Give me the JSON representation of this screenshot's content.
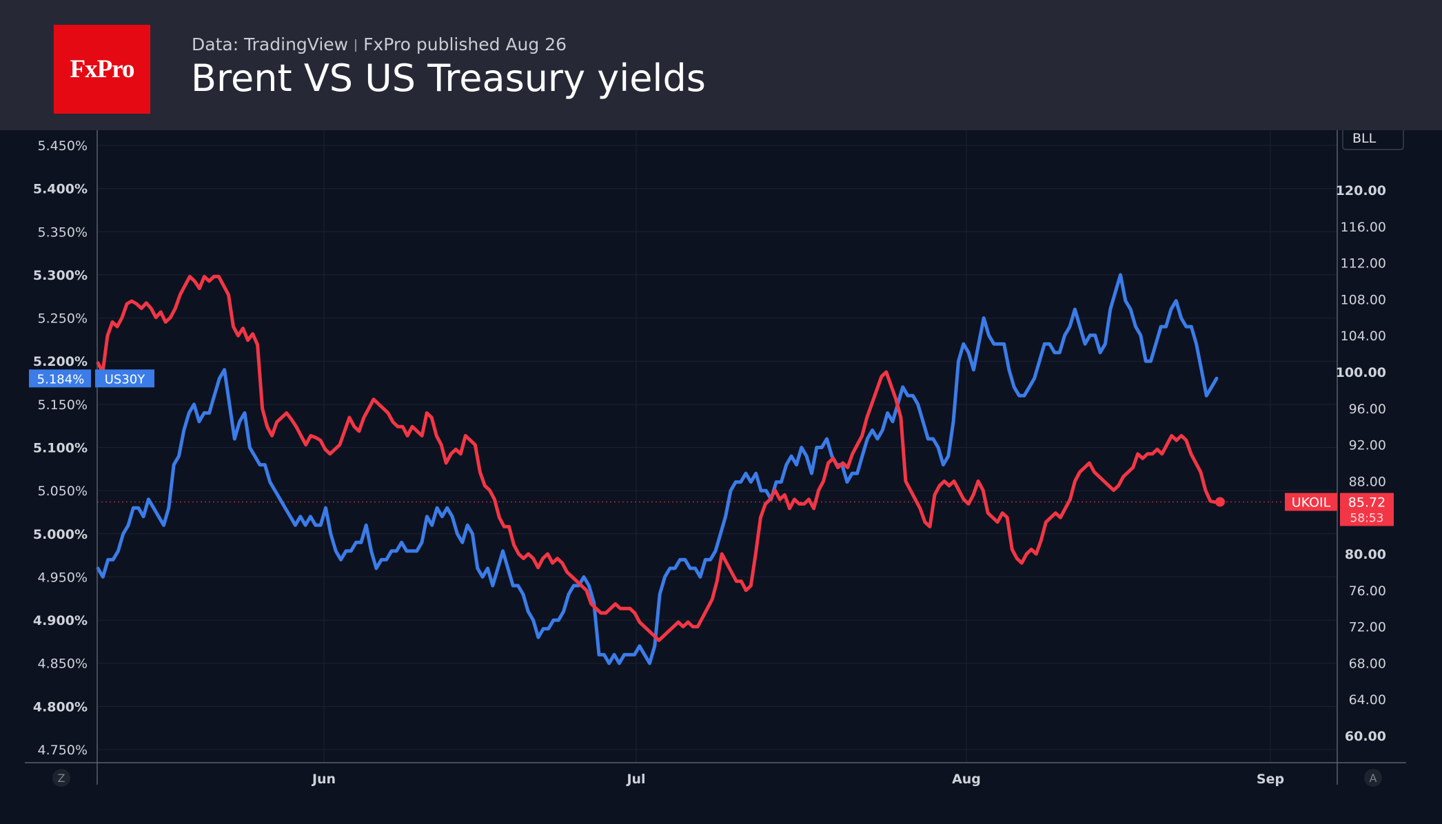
{
  "header": {
    "logo_text": "FxPro",
    "source_label": "Data: TradingView",
    "published": "FxPro published Aug 26",
    "title": "Brent VS US Treasury yields"
  },
  "chart_data": {
    "type": "line",
    "left_axis": {
      "ticks": [
        "5.450%",
        "5.400%",
        "5.350%",
        "5.300%",
        "5.250%",
        "5.200%",
        "5.150%",
        "5.100%",
        "5.050%",
        "5.000%",
        "4.950%",
        "4.900%",
        "4.850%",
        "4.800%",
        "4.750%"
      ],
      "tick_values": [
        5.45,
        5.4,
        5.35,
        5.3,
        5.25,
        5.2,
        5.15,
        5.1,
        5.05,
        5.0,
        4.95,
        4.9,
        4.85,
        4.8,
        4.75
      ],
      "range": [
        4.74,
        5.465
      ]
    },
    "right_axis": {
      "unit_label": "BLL",
      "ticks": [
        "120.00",
        "116.00",
        "112.00",
        "108.00",
        "104.00",
        "100.00",
        "96.00",
        "92.00",
        "88.00",
        "80.00",
        "76.00",
        "72.00",
        "68.00",
        "64.00",
        "60.00"
      ],
      "tick_values": [
        120,
        116,
        112,
        108,
        104,
        100,
        96,
        92,
        88,
        80,
        76,
        72,
        68,
        64,
        60
      ]
    },
    "x_axis": {
      "ticks": [
        "Jun",
        "Jul",
        "Aug",
        "Sep"
      ],
      "tick_positions": [
        0.184,
        0.439,
        0.707,
        0.953
      ],
      "left_button": "Z",
      "right_button": "A"
    },
    "series": [
      {
        "name": "US30Y",
        "axis": "left",
        "color": "#3b7ce8",
        "last_label": "5.184%",
        "values": [
          4.96,
          4.95,
          4.97,
          4.97,
          4.98,
          5.0,
          5.01,
          5.03,
          5.03,
          5.02,
          5.04,
          5.03,
          5.02,
          5.01,
          5.03,
          5.08,
          5.09,
          5.12,
          5.14,
          5.15,
          5.13,
          5.14,
          5.14,
          5.16,
          5.18,
          5.19,
          5.15,
          5.11,
          5.13,
          5.14,
          5.1,
          5.09,
          5.08,
          5.08,
          5.06,
          5.05,
          5.04,
          5.03,
          5.02,
          5.01,
          5.02,
          5.01,
          5.02,
          5.01,
          5.01,
          5.03,
          5.0,
          4.98,
          4.97,
          4.98,
          4.98,
          4.99,
          4.99,
          5.01,
          4.98,
          4.96,
          4.97,
          4.97,
          4.98,
          4.98,
          4.99,
          4.98,
          4.98,
          4.98,
          4.99,
          5.02,
          5.01,
          5.03,
          5.02,
          5.03,
          5.02,
          5.0,
          4.99,
          5.01,
          5.0,
          4.96,
          4.95,
          4.96,
          4.94,
          4.96,
          4.98,
          4.96,
          4.94,
          4.94,
          4.93,
          4.91,
          4.9,
          4.88,
          4.89,
          4.89,
          4.9,
          4.9,
          4.91,
          4.93,
          4.94,
          4.94,
          4.95,
          4.94,
          4.92,
          4.86,
          4.86,
          4.85,
          4.86,
          4.85,
          4.86,
          4.86,
          4.86,
          4.87,
          4.86,
          4.85,
          4.87,
          4.93,
          4.95,
          4.96,
          4.96,
          4.97,
          4.97,
          4.96,
          4.96,
          4.95,
          4.97,
          4.97,
          4.98,
          5.0,
          5.02,
          5.05,
          5.06,
          5.06,
          5.07,
          5.06,
          5.07,
          5.05,
          5.05,
          5.04,
          5.06,
          5.06,
          5.08,
          5.09,
          5.08,
          5.1,
          5.09,
          5.07,
          5.1,
          5.1,
          5.11,
          5.09,
          5.08,
          5.08,
          5.06,
          5.07,
          5.07,
          5.09,
          5.11,
          5.12,
          5.11,
          5.12,
          5.14,
          5.13,
          5.15,
          5.17,
          5.16,
          5.16,
          5.15,
          5.13,
          5.11,
          5.11,
          5.1,
          5.08,
          5.09,
          5.13,
          5.2,
          5.22,
          5.21,
          5.19,
          5.22,
          5.25,
          5.23,
          5.22,
          5.22,
          5.22,
          5.19,
          5.17,
          5.16,
          5.16,
          5.17,
          5.18,
          5.2,
          5.22,
          5.22,
          5.21,
          5.21,
          5.23,
          5.24,
          5.26,
          5.24,
          5.22,
          5.23,
          5.23,
          5.21,
          5.22,
          5.26,
          5.28,
          5.3,
          5.27,
          5.26,
          5.24,
          5.23,
          5.2,
          5.2,
          5.22,
          5.24,
          5.24,
          5.26,
          5.27,
          5.25,
          5.24,
          5.24,
          5.22,
          5.19,
          5.16,
          5.17,
          5.18
        ]
      },
      {
        "name": "UKOIL",
        "axis": "right",
        "color": "#f23645",
        "last_label": "85.72",
        "secondary_label": "58:53",
        "values": [
          101.0,
          100.0,
          104.0,
          105.5,
          105.0,
          106.0,
          107.5,
          107.8,
          107.5,
          107.0,
          107.6,
          107.0,
          106.0,
          106.6,
          105.5,
          106.0,
          107.0,
          108.5,
          109.5,
          110.5,
          110.0,
          109.2,
          110.5,
          110.0,
          110.5,
          110.5,
          109.5,
          108.5,
          105.0,
          104.0,
          104.8,
          103.5,
          104.2,
          103.0,
          96.0,
          94.0,
          93.0,
          94.5,
          95.0,
          95.5,
          94.8,
          94.0,
          93.0,
          92.0,
          93.0,
          92.8,
          92.5,
          91.5,
          91.0,
          91.5,
          92.0,
          93.5,
          95.0,
          94.0,
          93.5,
          95.0,
          96.0,
          97.0,
          96.5,
          96.0,
          95.5,
          94.5,
          94.0,
          94.0,
          93.0,
          94.0,
          93.5,
          93.0,
          95.5,
          95.0,
          93.0,
          92.0,
          90.0,
          91.0,
          91.5,
          91.0,
          93.0,
          92.5,
          92.0,
          89.0,
          87.5,
          87.0,
          86.0,
          84.0,
          83.0,
          83.0,
          81.0,
          80.0,
          79.5,
          80.0,
          79.5,
          78.5,
          79.5,
          80.0,
          79.0,
          79.5,
          79.0,
          78.0,
          77.5,
          77.0,
          76.5,
          76.0,
          74.5,
          74.0,
          73.5,
          73.5,
          74.0,
          74.5,
          74.0,
          74.0,
          74.0,
          73.5,
          72.5,
          72.0,
          71.5,
          71.0,
          70.5,
          71.0,
          71.5,
          72.0,
          72.5,
          72.0,
          72.5,
          72.0,
          72.0,
          73.0,
          74.0,
          75.0,
          77.0,
          80.0,
          79.0,
          78.0,
          77.0,
          77.0,
          76.0,
          76.5,
          80.0,
          84.0,
          85.5,
          86.0,
          87.0,
          86.0,
          86.5,
          85.0,
          86.0,
          85.5,
          85.5,
          86.0,
          85.0,
          87.0,
          88.0,
          90.0,
          90.5,
          89.5,
          90.0,
          89.5,
          91.0,
          92.0,
          93.0,
          95.0,
          96.5,
          98.0,
          99.5,
          100.0,
          98.5,
          97.0,
          95.0,
          88.0,
          87.0,
          86.0,
          85.0,
          83.5,
          83.0,
          86.5,
          87.5,
          88.0,
          87.5,
          88.0,
          87.0,
          86.0,
          85.5,
          86.5,
          88.0,
          87.0,
          84.5,
          84.0,
          83.5,
          84.5,
          84.0,
          80.5,
          79.5,
          79.0,
          80.0,
          80.5,
          80.0,
          81.5,
          83.5,
          84.0,
          84.5,
          84.0,
          85.0,
          86.0,
          88.0,
          89.0,
          89.5,
          90.0,
          89.0,
          88.5,
          88.0,
          87.5,
          87.0,
          87.5,
          88.5,
          89.0,
          89.5,
          91.0,
          90.5,
          91.0,
          91.0,
          91.5,
          91.0,
          92.0,
          93.0,
          92.5,
          93.0,
          92.5,
          91.0,
          90.0,
          89.0,
          87.0,
          85.8,
          85.7,
          85.72
        ]
      }
    ],
    "reference_line": {
      "axis": "right",
      "value": 85.72,
      "style": "dotted"
    },
    "grid": true,
    "legend": "axis-badges"
  }
}
